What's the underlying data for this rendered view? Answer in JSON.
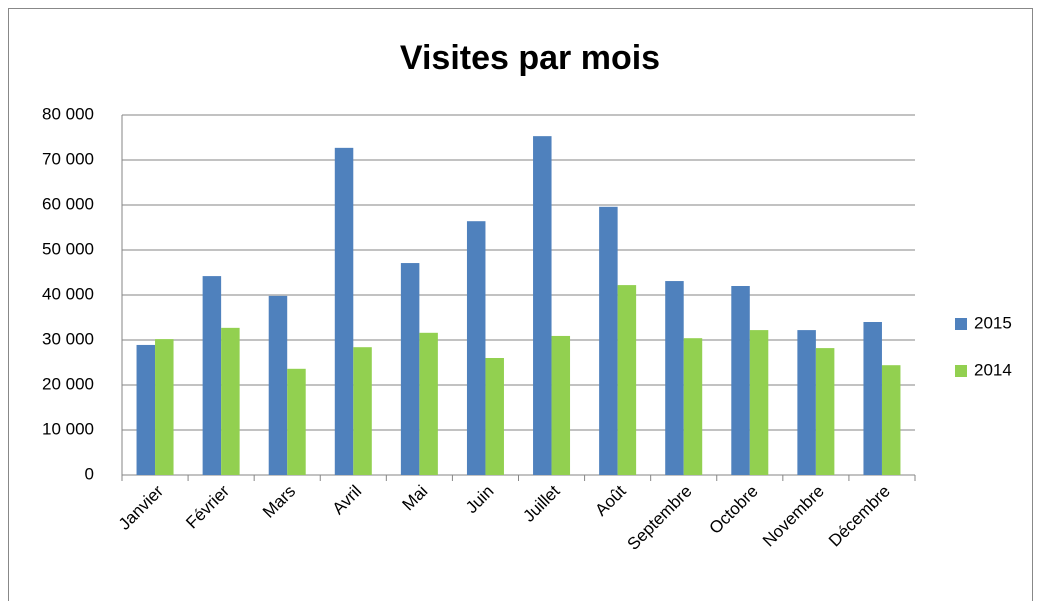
{
  "chart_data": {
    "type": "bar",
    "title": "Visites par mois",
    "categories": [
      "Janvier",
      "Février",
      "Mars",
      "Avril",
      "Mai",
      "Juin",
      "Juillet",
      "Août",
      "Septembre",
      "Octobre",
      "Novembre",
      "Décembre"
    ],
    "series": [
      {
        "name": "2015",
        "color": "#4f81bd",
        "values": [
          28900,
          44200,
          39800,
          72700,
          47100,
          56400,
          75300,
          59600,
          43100,
          42000,
          32200,
          34000
        ]
      },
      {
        "name": "2014",
        "color": "#92d050",
        "values": [
          30200,
          32700,
          23600,
          28400,
          31600,
          26000,
          30900,
          42200,
          30400,
          32200,
          28200,
          24400
        ]
      }
    ],
    "ylim": [
      0,
      80000
    ],
    "yticks": [
      0,
      {
        "value": 10000,
        "label": "10 000"
      },
      {
        "value": 20000,
        "label": "20 000"
      },
      {
        "value": 30000,
        "label": "30 000"
      },
      {
        "value": 40000,
        "label": "40 000"
      },
      {
        "value": 50000,
        "label": "50 000"
      },
      {
        "value": 60000,
        "label": "60 000"
      },
      {
        "value": 70000,
        "label": "70 000"
      },
      {
        "value": 80000,
        "label": "80 000"
      }
    ],
    "grid": true,
    "legend": "right"
  }
}
